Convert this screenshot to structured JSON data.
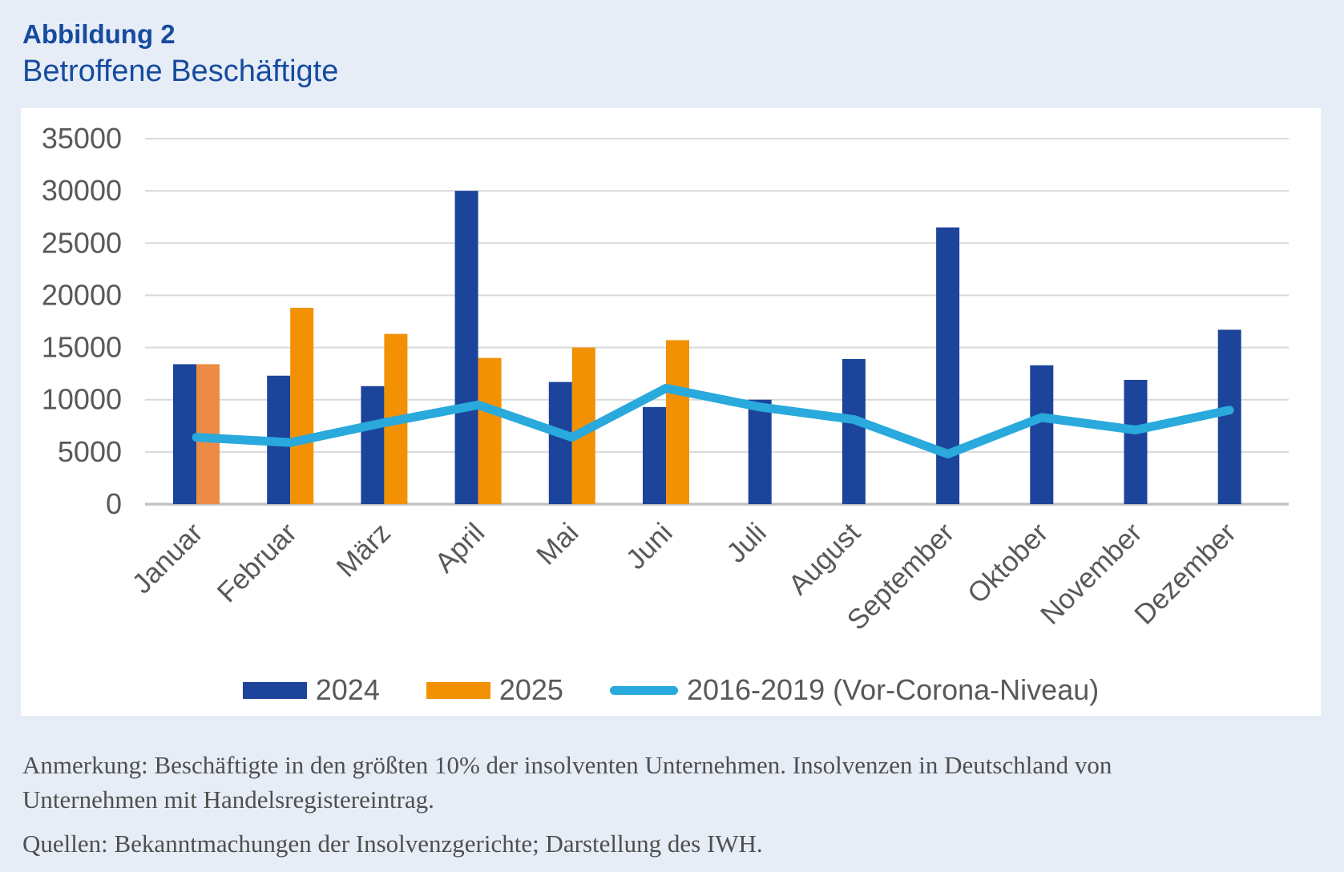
{
  "header": {
    "title": "Abbildung 2",
    "subtitle": "Betroffene Beschäftigte"
  },
  "chart_data": {
    "type": "combo",
    "categories": [
      "Januar",
      "Februar",
      "März",
      "April",
      "Mai",
      "Juni",
      "Juli",
      "August",
      "September",
      "Oktober",
      "November",
      "Dezember"
    ],
    "series": [
      {
        "name": "2024",
        "type": "bar",
        "color": "#1C449B",
        "values": [
          13400,
          12300,
          11300,
          30000,
          11700,
          9300,
          10000,
          13900,
          26500,
          13300,
          11900,
          16700
        ]
      },
      {
        "name": "2025",
        "type": "bar",
        "color": "#F29104",
        "point_colors": [
          {
            "index": 0,
            "color": "#EC8B45"
          }
        ],
        "values": [
          13400,
          18800,
          16300,
          14000,
          15000,
          15700,
          null,
          null,
          null,
          null,
          null,
          null
        ]
      },
      {
        "name": "2016-2019 (Vor-Corona-Niveau)",
        "type": "line",
        "color": "#29A9DC",
        "values": [
          6400,
          5900,
          7800,
          9500,
          6400,
          11100,
          9300,
          8100,
          4800,
          8300,
          7100,
          9000
        ]
      }
    ],
    "ylim": [
      0,
      35000
    ],
    "ytick_step": 5000,
    "ytick_labels": [
      "0",
      "5000",
      "10000",
      "15000",
      "20000",
      "25000",
      "30000",
      "35000"
    ],
    "grid": "horizontal",
    "legend_position": "bottom",
    "xlabel": "",
    "ylabel": ""
  },
  "colors": {
    "page_background": "#E7EDF7",
    "panel_background": "#FFFFFF",
    "title_blue": "#164B9E",
    "gridline": "#D9D9D9",
    "axis_baseline": "#C4C4C4",
    "axis_text": "#595959",
    "notes_text": "#4F4F4F"
  },
  "notes": {
    "anmerkung": "Anmerkung: Beschäftigte in den größten 10% der insolventen Unternehmen. Insolvenzen in Deutschland von Unternehmen mit Handelsregistereintrag.",
    "quellen": "Quellen: Bekanntmachungen der Insolvenzgerichte; Darstellung des IWH."
  }
}
